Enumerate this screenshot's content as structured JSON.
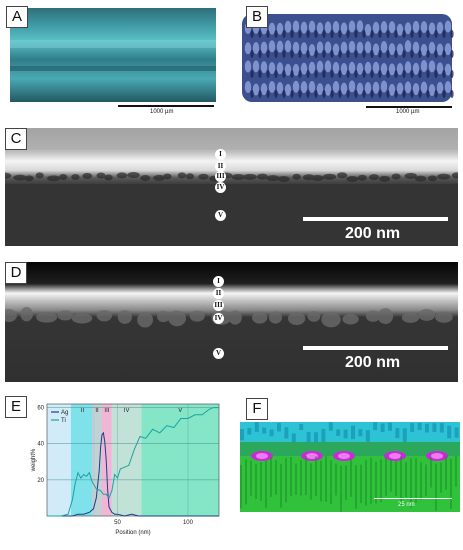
{
  "panels": {
    "a": {
      "label": "A",
      "scale": "1000 µm"
    },
    "b": {
      "label": "B",
      "scale": "1000 µm"
    },
    "c": {
      "label": "C",
      "scale": "200 nm",
      "layers": [
        "I",
        "II",
        "III",
        "IV",
        "V"
      ]
    },
    "d": {
      "label": "D",
      "scale": "200 nm",
      "layers": [
        "I",
        "II",
        "III",
        "IV",
        "V"
      ]
    },
    "e": {
      "label": "E"
    },
    "f": {
      "label": "F",
      "scale": "25 nm"
    }
  },
  "chart_data": {
    "type": "line",
    "title": "",
    "xlabel": "Position (nm)",
    "ylabel": "weight%",
    "xlim": [
      0,
      122
    ],
    "ylim": [
      0,
      62
    ],
    "xticks": [
      50,
      100
    ],
    "yticks": [
      20,
      40,
      60
    ],
    "regions": [
      {
        "label": "I",
        "from": 0,
        "to": 34,
        "color": "#c9e9f7"
      },
      {
        "label": "I",
        "from": 17,
        "to": 32,
        "color": "#71e0e8"
      },
      {
        "label": "II",
        "from": 32,
        "to": 39,
        "color": "#b9c8cc"
      },
      {
        "label": "III",
        "from": 39,
        "to": 46,
        "color": "#eea9cf"
      },
      {
        "label": "IV",
        "from": 46,
        "to": 67,
        "color": "#b9ddd0"
      },
      {
        "label": "V",
        "from": 67,
        "to": 122,
        "color": "#6fe1bd"
      }
    ],
    "series": [
      {
        "name": "Ag",
        "color": "#1a3f88",
        "x": [
          0,
          18,
          22,
          26,
          30,
          33,
          35,
          37,
          38,
          39,
          40,
          41,
          42,
          43,
          44,
          46,
          48,
          50,
          55,
          60,
          65,
          70,
          80,
          90,
          100,
          110,
          122
        ],
        "y": [
          0,
          0,
          1,
          1,
          2,
          4,
          10,
          25,
          38,
          45,
          46,
          41,
          31,
          15,
          5,
          2,
          1,
          1,
          0,
          1,
          0,
          0,
          0,
          0,
          0,
          0,
          0
        ]
      },
      {
        "name": "Ti",
        "color": "#1aa3a0",
        "x": [
          0,
          10,
          15,
          18,
          20,
          22,
          24,
          26,
          28,
          30,
          32,
          35,
          38,
          40,
          42,
          44,
          46,
          48,
          50,
          52,
          55,
          58,
          62,
          66,
          70,
          75,
          80,
          85,
          90,
          95,
          100,
          105,
          110,
          115,
          118,
          122
        ],
        "y": [
          0,
          0,
          1,
          9,
          18,
          24,
          21,
          23,
          22,
          24,
          19,
          15,
          14,
          12,
          12,
          10,
          14,
          23,
          21,
          26,
          27,
          28,
          37,
          44,
          43,
          48,
          46,
          50,
          49,
          54,
          54,
          56,
          56,
          59,
          60,
          60
        ]
      }
    ]
  }
}
